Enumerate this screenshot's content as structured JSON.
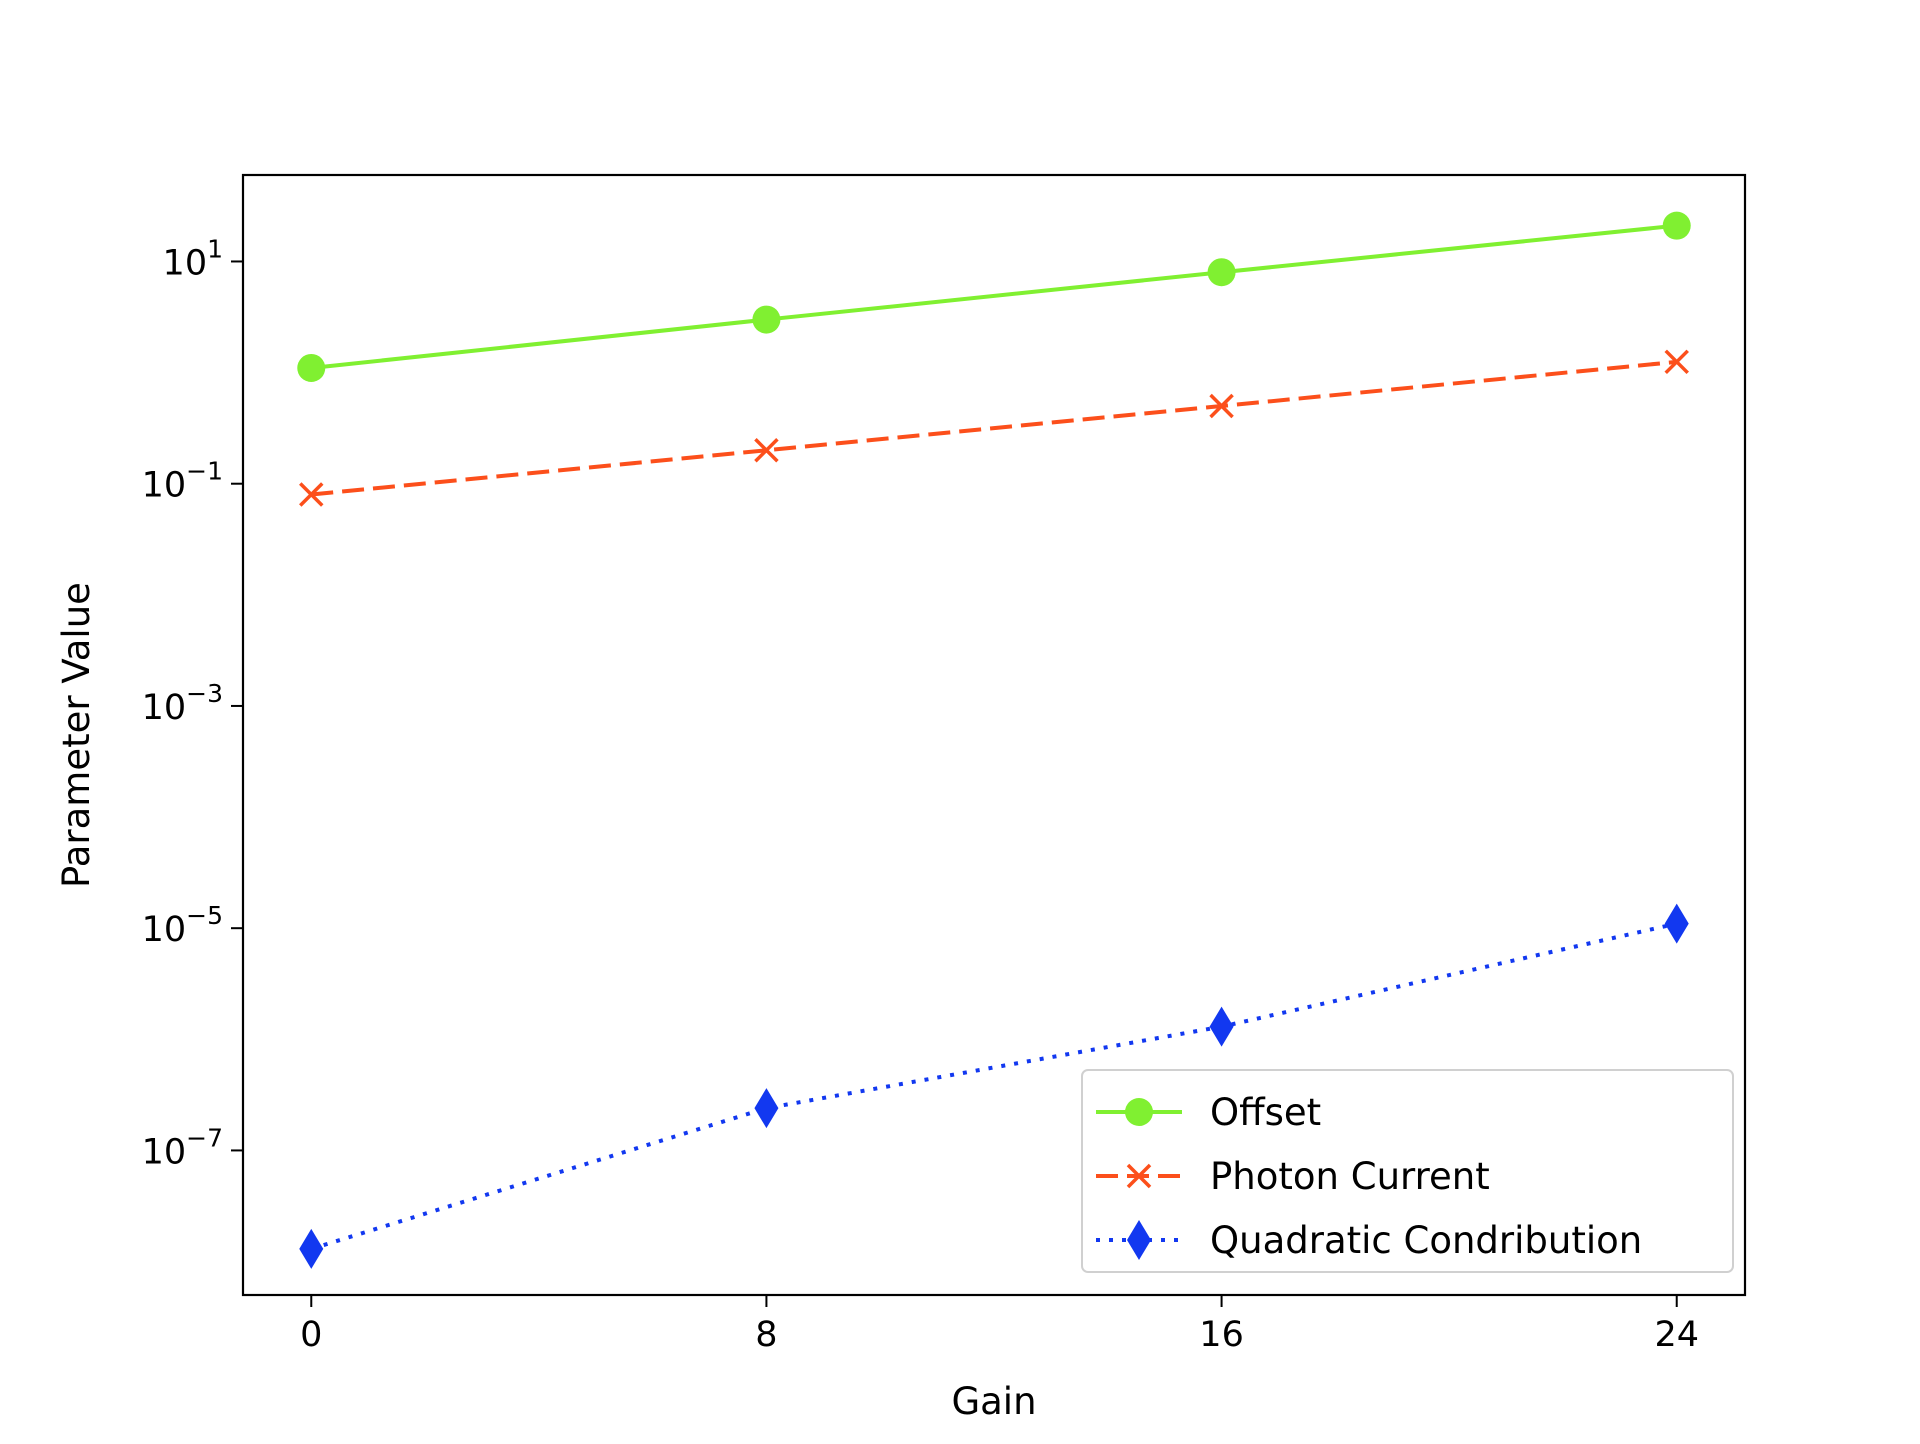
{
  "chart_data": {
    "type": "line",
    "title": "",
    "xlabel": "Gain",
    "ylabel": "Parameter Value",
    "yscale": "log",
    "x": [
      0,
      8,
      16,
      24
    ],
    "xticks": [
      "0",
      "8",
      "16",
      "24"
    ],
    "yticks": [
      {
        "base": "10",
        "exp": "1",
        "value": 10
      },
      {
        "base": "10",
        "exp": "−1",
        "value": 0.1
      },
      {
        "base": "10",
        "exp": "−3",
        "value": 0.001
      },
      {
        "base": "10",
        "exp": "−5",
        "value": 1e-05
      },
      {
        "base": "10",
        "exp": "−7",
        "value": 1e-07
      }
    ],
    "xlim": [
      -1.2,
      25.2
    ],
    "ylim": [
      5e-09,
      60
    ],
    "grid": false,
    "legend_position": "lower-right",
    "series": [
      {
        "name": "Offset",
        "values": [
          1.1,
          3.0,
          8.0,
          21.0
        ],
        "color": "#80f031",
        "line_style": "solid",
        "marker": "circle"
      },
      {
        "name": "Photon Current",
        "values": [
          0.08,
          0.2,
          0.5,
          1.25
        ],
        "color": "#fc4f1b",
        "line_style": "dashed",
        "marker": "x"
      },
      {
        "name": "Quadratic Condribution",
        "values": [
          1.3e-08,
          2.4e-07,
          1.3e-06,
          1.1e-05
        ],
        "color": "#1238f0",
        "line_style": "dotted",
        "marker": "diamond"
      }
    ]
  }
}
